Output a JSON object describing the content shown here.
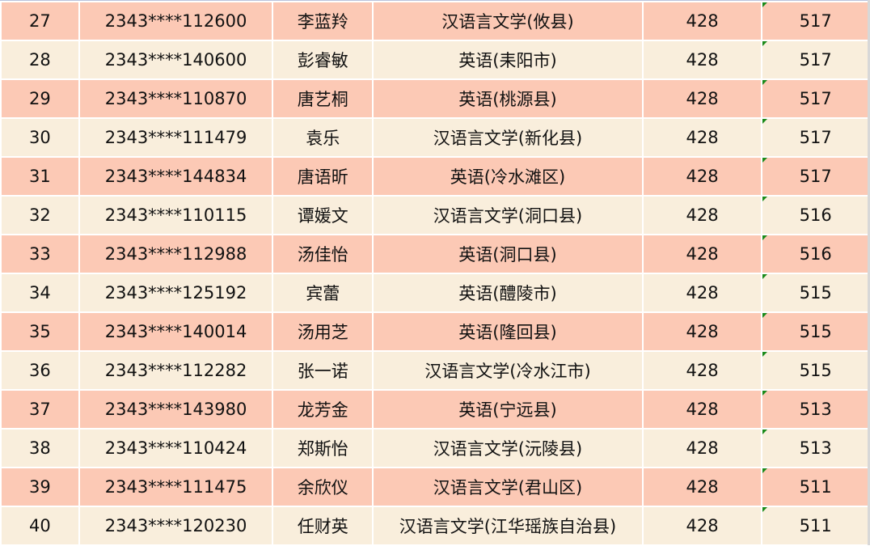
{
  "colors": {
    "odd_row": "#fcc9b5",
    "even_row": "#f9eedc",
    "flag": "#1a8a1a"
  },
  "rows": [
    [
      "27",
      "2343****112600",
      "李蓝羚",
      "汉语言文学(攸县)",
      "428",
      "517"
    ],
    [
      "28",
      "2343****140600",
      "彭睿敏",
      "英语(耒阳市)",
      "428",
      "517"
    ],
    [
      "29",
      "2343****110870",
      "唐艺桐",
      "英语(桃源县)",
      "428",
      "517"
    ],
    [
      "30",
      "2343****111479",
      "袁乐",
      "汉语言文学(新化县)",
      "428",
      "517"
    ],
    [
      "31",
      "2343****144834",
      "唐语昕",
      "英语(冷水滩区)",
      "428",
      "517"
    ],
    [
      "32",
      "2343****110115",
      "谭媛文",
      "汉语言文学(洞口县)",
      "428",
      "516"
    ],
    [
      "33",
      "2343****112988",
      "汤佳怡",
      "英语(洞口县)",
      "428",
      "516"
    ],
    [
      "34",
      "2343****125192",
      "宾蕾",
      "英语(醴陵市)",
      "428",
      "515"
    ],
    [
      "35",
      "2343****140014",
      "汤用芝",
      "英语(隆回县)",
      "428",
      "515"
    ],
    [
      "36",
      "2343****112282",
      "张一诺",
      "汉语言文学(冷水江市)",
      "428",
      "515"
    ],
    [
      "37",
      "2343****143980",
      "龙芳金",
      "英语(宁远县)",
      "428",
      "513"
    ],
    [
      "38",
      "2343****110424",
      "郑斯怡",
      "汉语言文学(沅陵县)",
      "428",
      "513"
    ],
    [
      "39",
      "2343****111475",
      "余欣仪",
      "汉语言文学(君山区)",
      "428",
      "511"
    ],
    [
      "40",
      "2343****120230",
      "任财英",
      "汉语言文学(江华瑶族自治县)",
      "428",
      "511"
    ]
  ]
}
